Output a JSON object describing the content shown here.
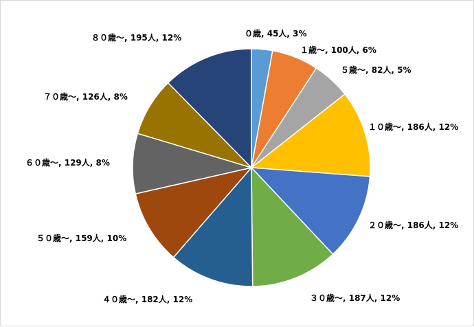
{
  "chart_data": {
    "type": "pie",
    "title": "",
    "categories": [
      "０歳",
      "１歳～",
      "５歳～",
      "１０歳～",
      "２０歳～",
      "３０歳～",
      "４０歳～",
      "５０歳～",
      "６０歳～",
      "７０歳～",
      "８０歳～"
    ],
    "values": [
      45,
      100,
      82,
      186,
      186,
      187,
      182,
      159,
      129,
      126,
      195
    ],
    "labels": [
      "０歳, 45人, 3%",
      "１歳～, 100人, 6%",
      "５歳～, 82人, 5%",
      "１０歳～, 186人, 12%",
      "２０歳～, 186人, 12%",
      "３０歳～, 187人, 12%",
      "４０歳～, 182人, 12%",
      "５０歳～, 159人, 10%",
      "６０歳～, 129人, 8%",
      "７０歳～, 126人, 8%",
      "８０歳～, 195人, 12%"
    ],
    "colors": [
      "#5b9bd5",
      "#ed7d31",
      "#a5a5a5",
      "#ffc000",
      "#4472c4",
      "#70ad47",
      "#255e91",
      "#9e480e",
      "#636363",
      "#997300",
      "#264478"
    ],
    "legend": "none",
    "start_angle": "12 o'clock",
    "direction": "clockwise"
  }
}
